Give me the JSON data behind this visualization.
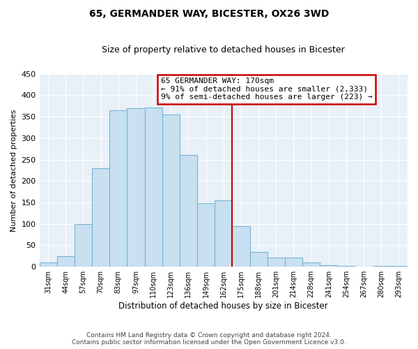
{
  "title": "65, GERMANDER WAY, BICESTER, OX26 3WD",
  "subtitle": "Size of property relative to detached houses in Bicester",
  "xlabel": "Distribution of detached houses by size in Bicester",
  "ylabel": "Number of detached properties",
  "bar_labels": [
    "31sqm",
    "44sqm",
    "57sqm",
    "70sqm",
    "83sqm",
    "97sqm",
    "110sqm",
    "123sqm",
    "136sqm",
    "149sqm",
    "162sqm",
    "175sqm",
    "188sqm",
    "201sqm",
    "214sqm",
    "228sqm",
    "241sqm",
    "254sqm",
    "267sqm",
    "280sqm",
    "293sqm"
  ],
  "bar_values": [
    10,
    25,
    100,
    230,
    365,
    370,
    372,
    355,
    260,
    148,
    155,
    95,
    35,
    22,
    22,
    10,
    3,
    2,
    0,
    2,
    2
  ],
  "bar_color": "#c8e0f0",
  "bar_edge_color": "#7ab4d4",
  "highlight_color": "#cc0000",
  "annotation_title": "65 GERMANDER WAY: 170sqm",
  "annotation_line1": "← 91% of detached houses are smaller (2,333)",
  "annotation_line2": "9% of semi-detached houses are larger (223) →",
  "annotation_box_color": "#ffffff",
  "annotation_border_color": "#cc0000",
  "ylim": [
    0,
    450
  ],
  "yticks": [
    0,
    50,
    100,
    150,
    200,
    250,
    300,
    350,
    400,
    450
  ],
  "footer1": "Contains HM Land Registry data © Crown copyright and database right 2024.",
  "footer2": "Contains public sector information licensed under the Open Government Licence v3.0.",
  "background_color": "#ffffff",
  "plot_bg_color": "#e8f0f8",
  "grid_color": "#ffffff"
}
